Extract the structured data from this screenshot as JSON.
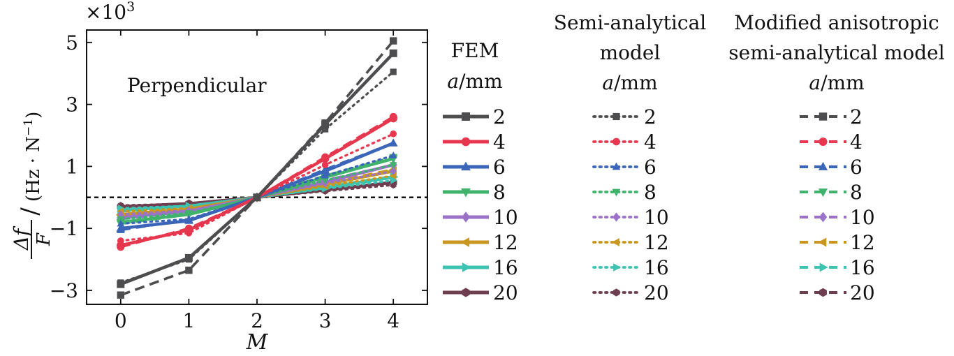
{
  "chart_data": {
    "type": "line",
    "annotation": "Perpendicular",
    "xlabel": "M",
    "ylabel_parts": {
      "num": "Δf",
      "den": "F",
      "unit": "(Hz · N",
      "unit_exp": "−1",
      "unit_close": ")"
    },
    "y_multiplier": "×10",
    "y_multiplier_exp": "3",
    "x": [
      0,
      1,
      2,
      3,
      4
    ],
    "xlim": [
      -0.5,
      4.5
    ],
    "ylim": [
      -3.45,
      5.4
    ],
    "x_ticks": [
      "0",
      "1",
      "2",
      "3",
      "4"
    ],
    "y_ticks": [
      -3,
      -1,
      1,
      3,
      5
    ],
    "y_tick_labels": [
      "−3",
      "−1",
      "1",
      "3",
      "5"
    ],
    "reference_line": 0,
    "grid": false,
    "legend_position": "right",
    "legend_groups": [
      {
        "key": "fem",
        "title_lines": [
          "FEM",
          "a/mm"
        ],
        "style": "solid",
        "marker_style": "solid"
      },
      {
        "key": "semi",
        "title_lines": [
          "Semi-analytical",
          "model",
          "a/mm"
        ],
        "style": "dotted",
        "marker_style": "dotted"
      },
      {
        "key": "mod",
        "title_lines": [
          "Modified anisotropic",
          "semi-analytical model",
          "a/mm"
        ],
        "style": "dashed",
        "marker_style": "dashed"
      }
    ],
    "series": [
      {
        "name": "2",
        "color": "#4d4d4f",
        "marker": "square",
        "fem": [
          -2.8,
          -1.95,
          0,
          2.35,
          4.65
        ],
        "semi": [
          -2.75,
          -2.0,
          0,
          2.2,
          4.05
        ],
        "mod": [
          -3.15,
          -2.35,
          0,
          2.4,
          5.05
        ]
      },
      {
        "name": "4",
        "color": "#e6374e",
        "marker": "circle",
        "fem": [
          -1.55,
          -1.05,
          0,
          1.25,
          2.55
        ],
        "semi": [
          -1.4,
          -1.15,
          0,
          1.05,
          2.05
        ],
        "mod": [
          -1.6,
          -1.0,
          0,
          1.3,
          2.6
        ]
      },
      {
        "name": "6",
        "color": "#3a65b8",
        "marker": "triangle-up",
        "fem": [
          -1.0,
          -0.75,
          0,
          0.85,
          1.75
        ],
        "semi": [
          -0.85,
          -0.7,
          0,
          0.7,
          1.35
        ],
        "mod": [
          -1.05,
          -0.72,
          0,
          0.9,
          1.75
        ]
      },
      {
        "name": "8",
        "color": "#3fb36b",
        "marker": "triangle-down",
        "fem": [
          -0.8,
          -0.55,
          0,
          0.65,
          1.25
        ],
        "semi": [
          -0.7,
          -0.5,
          0,
          0.55,
          1.05
        ],
        "mod": [
          -0.85,
          -0.55,
          0,
          0.7,
          1.3
        ]
      },
      {
        "name": "10",
        "color": "#9b72c8",
        "marker": "diamond",
        "fem": [
          -0.65,
          -0.45,
          0,
          0.5,
          1.05
        ],
        "semi": [
          -0.55,
          -0.42,
          0,
          0.45,
          0.85
        ],
        "mod": [
          -0.7,
          -0.45,
          0,
          0.55,
          1.05
        ]
      },
      {
        "name": "12",
        "color": "#c9961e",
        "marker": "triangle-left",
        "fem": [
          -0.55,
          -0.38,
          0,
          0.42,
          0.85
        ],
        "semi": [
          -0.45,
          -0.35,
          0,
          0.36,
          0.7
        ],
        "mod": [
          -0.58,
          -0.38,
          0,
          0.45,
          0.9
        ]
      },
      {
        "name": "16",
        "color": "#3cc3b2",
        "marker": "triangle-right",
        "fem": [
          -0.42,
          -0.28,
          0,
          0.32,
          0.65
        ],
        "semi": [
          -0.35,
          -0.27,
          0,
          0.28,
          0.55
        ],
        "mod": [
          -0.45,
          -0.3,
          0,
          0.34,
          0.68
        ]
      },
      {
        "name": "20",
        "color": "#6e3d4f",
        "marker": "hexagon",
        "fem": [
          -0.3,
          -0.2,
          0,
          0.24,
          0.48
        ],
        "semi": [
          -0.26,
          -0.2,
          0,
          0.2,
          0.4
        ],
        "mod": [
          -0.32,
          -0.22,
          0,
          0.25,
          0.5
        ]
      }
    ]
  }
}
